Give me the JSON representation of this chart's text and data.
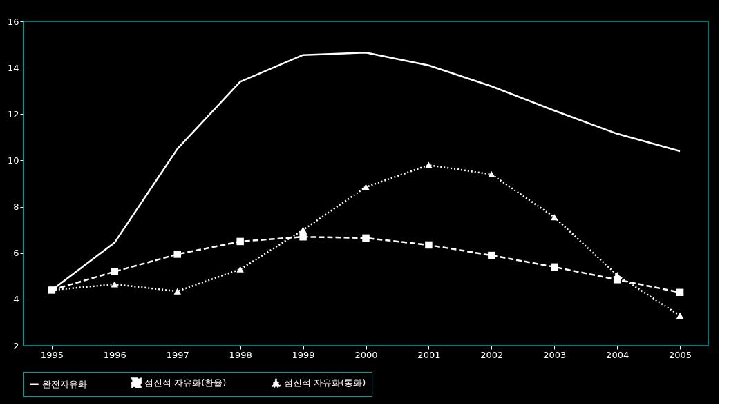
{
  "chart_data": {
    "type": "line",
    "categories": [
      "1995",
      "1996",
      "1997",
      "1998",
      "1999",
      "2000",
      "2001",
      "2002",
      "2003",
      "2004",
      "2005"
    ],
    "ylim": [
      2,
      16
    ],
    "yticks": [
      2,
      4,
      6,
      8,
      10,
      12,
      14,
      16
    ],
    "grid": false,
    "legend": "bottom",
    "series": [
      {
        "name": "완전자유화",
        "color": "#ffffff",
        "marker": "none",
        "line_style": "solid",
        "values": [
          4.4,
          6.45,
          10.5,
          13.4,
          14.55,
          14.65,
          14.1,
          13.2,
          12.15,
          11.15,
          10.4
        ]
      },
      {
        "name": "점진적 자유화(환율)",
        "color": "#ffffff",
        "marker": "square",
        "line_style": "dashed",
        "values": [
          4.4,
          5.2,
          5.95,
          6.5,
          6.7,
          6.65,
          6.35,
          5.9,
          5.4,
          4.85,
          4.3
        ]
      },
      {
        "name": "점진적 자유화(통화)",
        "color": "#ffffff",
        "marker": "triangle",
        "line_style": "dotted",
        "values": [
          4.4,
          4.65,
          4.35,
          5.3,
          7.0,
          8.85,
          9.8,
          9.4,
          7.55,
          5.05,
          3.3
        ]
      }
    ]
  }
}
